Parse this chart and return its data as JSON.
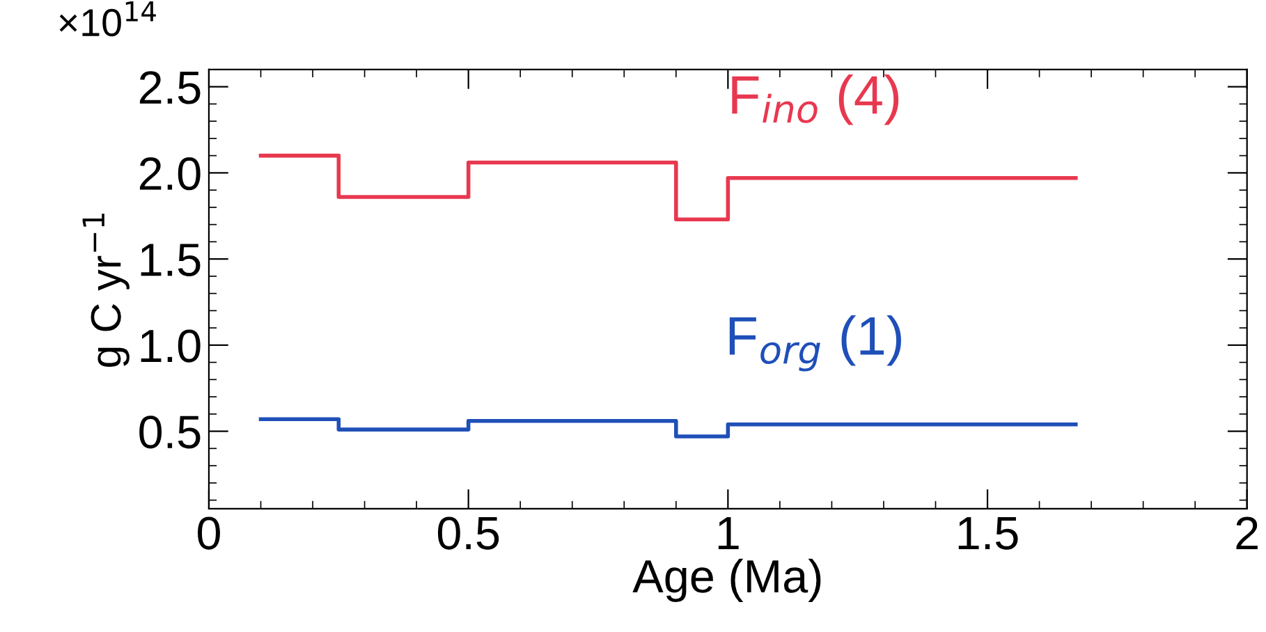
{
  "chart_data": {
    "type": "step",
    "xlabel": "Age (Ma)",
    "ylabel": "g C yr$^{−1}$",
    "annotations": [
      "×10$^{14}$"
    ],
    "x": [
      0.1,
      0.25,
      0.5,
      0.9,
      1.0,
      1.67
    ],
    "series": [
      {
        "name": "F$_{ino}$ (4)",
        "color": "#e8384f",
        "values": [
          2.1,
          1.86,
          2.06,
          1.73,
          1.97,
          1.97
        ]
      },
      {
        "name": "F$_{org}$ (1)",
        "color": "#1f4fb8",
        "values": [
          0.57,
          0.51,
          0.56,
          0.47,
          0.54,
          0.54
        ]
      }
    ],
    "xlim": [
      0,
      2
    ],
    "xticks": [
      0,
      0.5,
      1,
      1.5,
      2
    ],
    "ylim": [
      0.05,
      2.6
    ],
    "yticks": [
      0.5,
      {
        "value": 1,
        "label": "1.0"
      },
      1.5,
      {
        "value": 2,
        "label": "2.0"
      },
      2.5
    ],
    "grid": false,
    "legend": false,
    "line_style": "solid",
    "marker": "none"
  }
}
